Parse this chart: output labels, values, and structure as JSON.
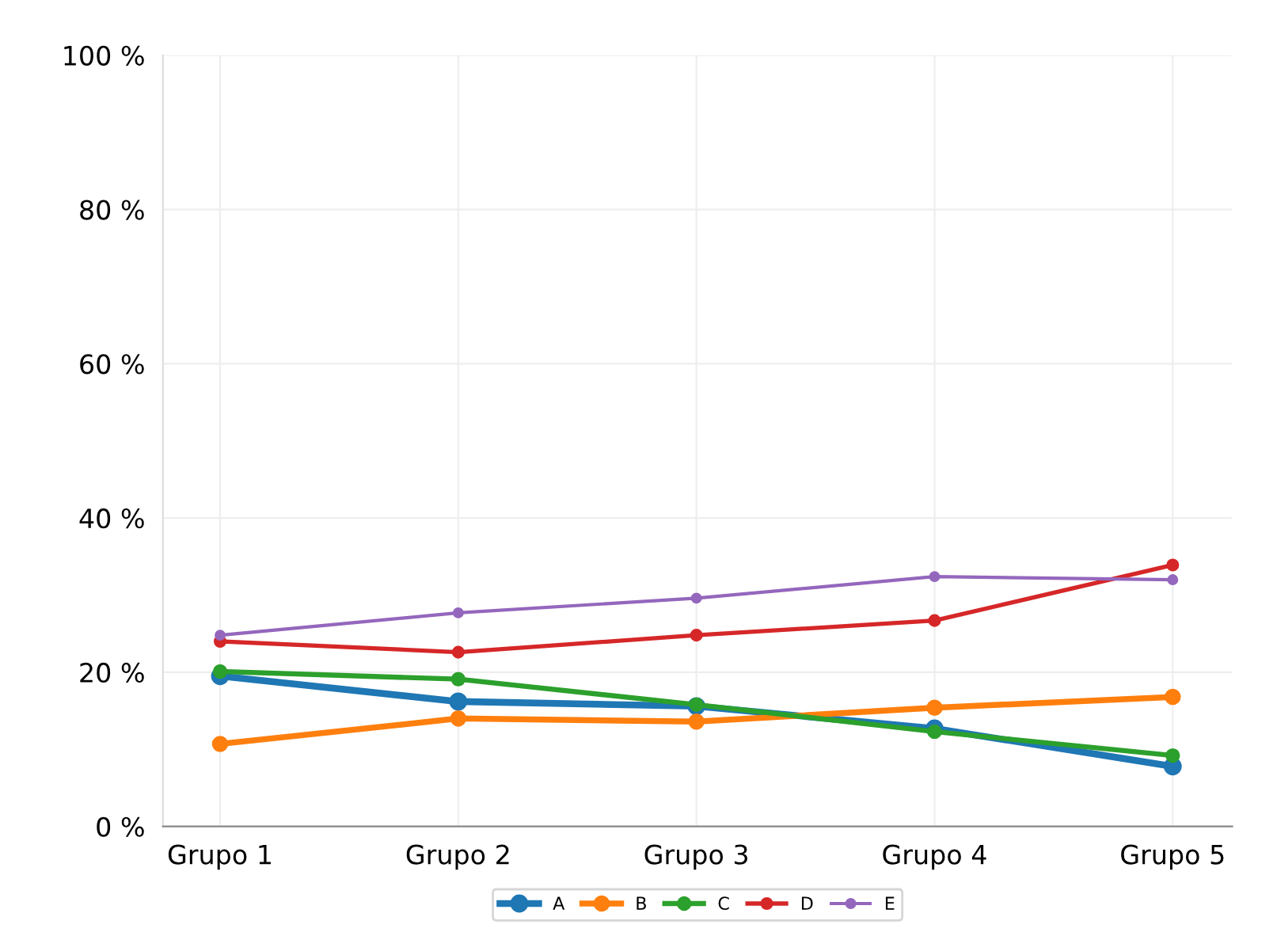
{
  "chart_data": {
    "type": "line",
    "categories": [
      "Grupo 1",
      "Grupo 2",
      "Grupo 3",
      "Grupo 4",
      "Grupo 5"
    ],
    "series": [
      {
        "name": "A",
        "color": "#1f77b4",
        "values": [
          19.5,
          16.2,
          15.6,
          12.7,
          7.8
        ]
      },
      {
        "name": "B",
        "color": "#ff7f0e",
        "values": [
          10.7,
          14.0,
          13.6,
          15.4,
          16.8
        ]
      },
      {
        "name": "C",
        "color": "#2ca02c",
        "values": [
          20.1,
          19.1,
          15.8,
          12.3,
          9.2
        ]
      },
      {
        "name": "D",
        "color": "#d62728",
        "values": [
          24.0,
          22.6,
          24.8,
          26.7,
          33.9
        ]
      },
      {
        "name": "E",
        "color": "#9467bd",
        "values": [
          24.8,
          27.7,
          29.6,
          32.4,
          32.0
        ]
      }
    ],
    "ylim": [
      0,
      100
    ],
    "yticks": [
      {
        "value": 0,
        "label": "0 %"
      },
      {
        "value": 20,
        "label": "20 %"
      },
      {
        "value": 40,
        "label": "40 %"
      },
      {
        "value": 60,
        "label": "60 %"
      },
      {
        "value": 80,
        "label": "80 %"
      },
      {
        "value": 100,
        "label": "100 %"
      }
    ],
    "grid": true,
    "legend": "bottom",
    "marker": "circle",
    "line_style": "solid"
  }
}
